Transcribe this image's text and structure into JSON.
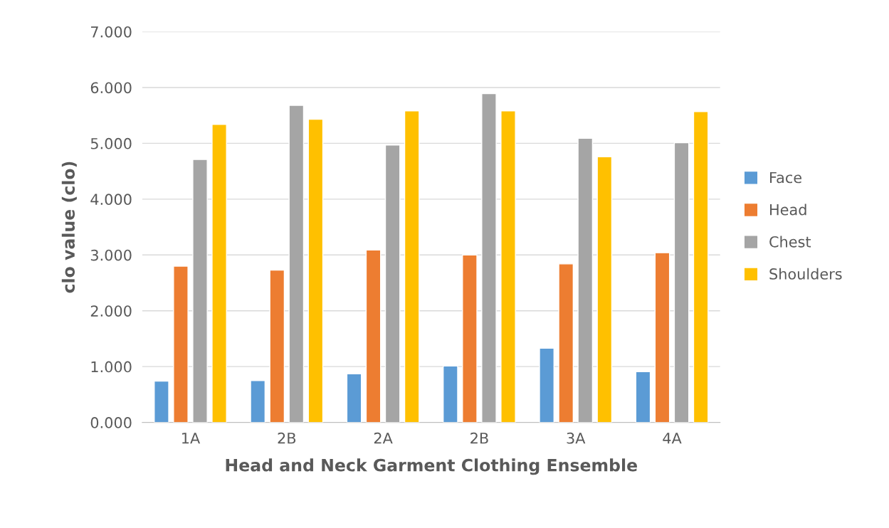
{
  "chart_data": {
    "type": "bar",
    "xlabel": "Head and Neck Garment Clothing Ensemble",
    "ylabel": "clo value (clo)",
    "categories": [
      "1A",
      "2B",
      "2A",
      "2B",
      "3A",
      "4A"
    ],
    "series": [
      {
        "name": "Face",
        "color": "#5b9bd5",
        "values": [
          0.74,
          0.75,
          0.87,
          1.01,
          1.33,
          0.91
        ]
      },
      {
        "name": "Head",
        "color": "#ed7d31",
        "values": [
          2.8,
          2.73,
          3.09,
          3.0,
          2.84,
          3.04
        ]
      },
      {
        "name": "Chest",
        "color": "#a5a5a5",
        "values": [
          4.71,
          5.68,
          4.97,
          5.89,
          5.09,
          5.01
        ]
      },
      {
        "name": "Shoulders",
        "color": "#ffc000",
        "values": [
          5.34,
          5.43,
          5.58,
          5.58,
          4.76,
          5.57
        ]
      }
    ],
    "ylim": [
      0,
      7
    ],
    "yticks": [
      {
        "value": 0,
        "label": "0.000"
      },
      {
        "value": 1,
        "label": "1.000"
      },
      {
        "value": 2,
        "label": "2.000"
      },
      {
        "value": 3,
        "label": "3.000"
      },
      {
        "value": 4,
        "label": "4.000"
      },
      {
        "value": 5,
        "label": "5.000"
      },
      {
        "value": 6,
        "label": "6.000"
      },
      {
        "value": 7,
        "label": "7.000"
      }
    ],
    "grid": "y",
    "legend": "right"
  }
}
